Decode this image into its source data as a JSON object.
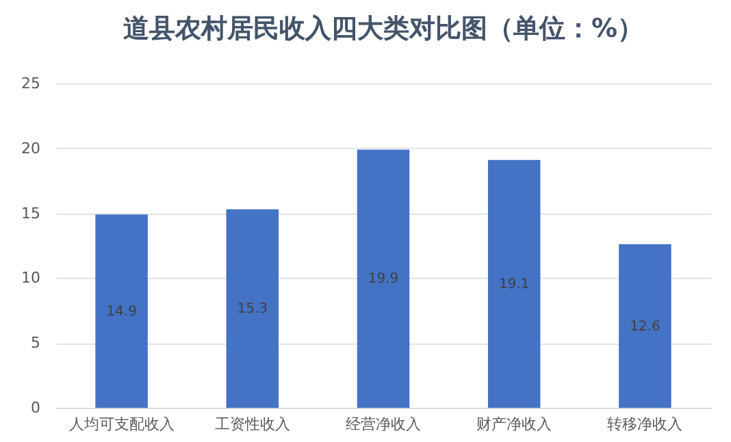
{
  "chart_data": {
    "type": "bar",
    "title": "道县农村居民收入四大类对比图（单位：%）",
    "categories": [
      "人均可支配收入",
      "工资性收入",
      "经营净收入",
      "财产净收入",
      "转移净收入"
    ],
    "values": [
      14.9,
      15.3,
      19.9,
      19.1,
      12.6
    ],
    "color": "#4472c4",
    "ylim": [
      0,
      25
    ],
    "yticks": [
      0,
      5,
      10,
      15,
      20,
      25
    ],
    "grid": "y",
    "data_labels": true
  }
}
